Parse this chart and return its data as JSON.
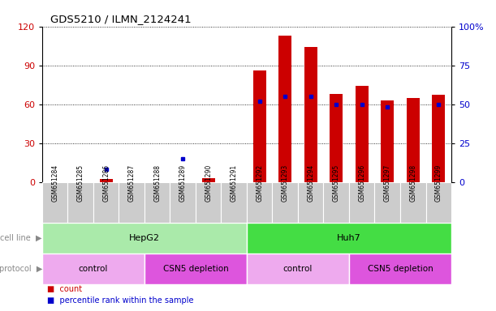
{
  "title": "GDS5210 / ILMN_2124241",
  "categories": [
    "GSM651284",
    "GSM651285",
    "GSM651286",
    "GSM651287",
    "GSM651288",
    "GSM651289",
    "GSM651290",
    "GSM651291",
    "GSM651292",
    "GSM651293",
    "GSM651294",
    "GSM651295",
    "GSM651296",
    "GSM651297",
    "GSM651298",
    "GSM651299"
  ],
  "count_values": [
    0,
    0,
    2,
    0,
    0,
    0,
    3,
    0,
    86,
    113,
    104,
    68,
    74,
    63,
    65,
    67
  ],
  "percentile_values": [
    null,
    null,
    8,
    null,
    null,
    15,
    null,
    null,
    52,
    55,
    55,
    50,
    50,
    48,
    null,
    50
  ],
  "ylim_left": [
    0,
    120
  ],
  "ylim_right": [
    0,
    100
  ],
  "yticks_left": [
    0,
    30,
    60,
    90,
    120
  ],
  "yticks_right": [
    0,
    25,
    50,
    75,
    100
  ],
  "ytick_labels_right": [
    "0",
    "25",
    "50",
    "75",
    "100%"
  ],
  "bar_color": "#cc0000",
  "dot_color": "#0000cc",
  "cell_line_groups": [
    {
      "label": "HepG2",
      "start": 0,
      "end": 8,
      "color": "#aaeaaa"
    },
    {
      "label": "Huh7",
      "start": 8,
      "end": 16,
      "color": "#44dd44"
    }
  ],
  "protocol_groups": [
    {
      "label": "control",
      "start": 0,
      "end": 4,
      "color": "#eeaaee"
    },
    {
      "label": "CSN5 depletion",
      "start": 4,
      "end": 8,
      "color": "#dd55dd"
    },
    {
      "label": "control",
      "start": 8,
      "end": 12,
      "color": "#eeaaee"
    },
    {
      "label": "CSN5 depletion",
      "start": 12,
      "end": 16,
      "color": "#dd55dd"
    }
  ],
  "legend_count_label": "count",
  "legend_pct_label": "percentile rank within the sample",
  "cell_line_label": "cell line",
  "protocol_label": "protocol",
  "tick_label_color_left": "#cc0000",
  "tick_label_color_right": "#0000cc",
  "tick_box_color": "#cccccc",
  "label_arrow_color": "#888888"
}
